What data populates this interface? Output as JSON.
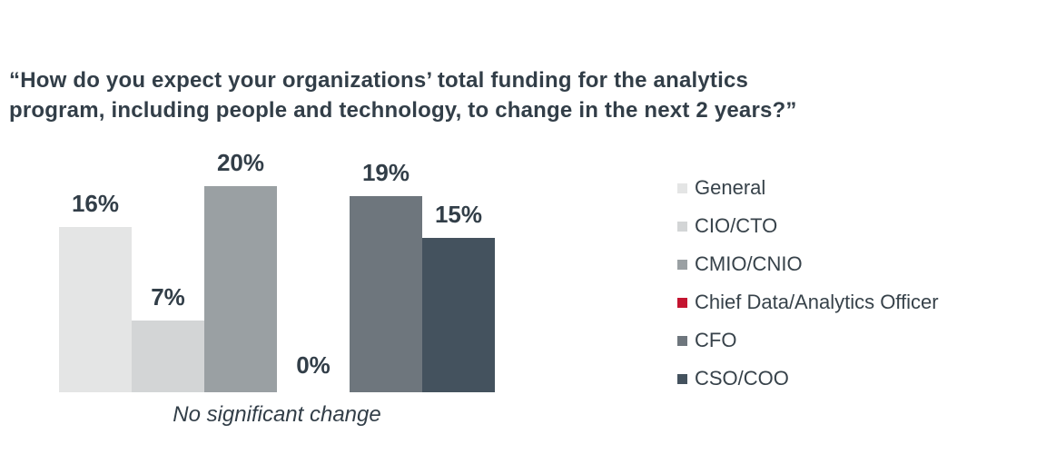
{
  "header": {
    "line1": "“How do you expect your organizations’ total funding for the analytics",
    "line2": "program, including people and technology, to change in the next 2 years?”"
  },
  "chart_data": {
    "type": "bar",
    "title": "“How do you expect your organizations’ total funding for the analytics program, including people and technology, to change in the next 2 years?”",
    "categories": [
      "No significant change"
    ],
    "series": [
      {
        "name": "General",
        "values": [
          16
        ],
        "labels": [
          "16%"
        ],
        "color": "#e4e5e5"
      },
      {
        "name": "CIO/CTO",
        "values": [
          7
        ],
        "labels": [
          "7%"
        ],
        "color": "#d3d5d6"
      },
      {
        "name": "CMIO/CNIO",
        "values": [
          20
        ],
        "labels": [
          "20%"
        ],
        "color": "#9aa0a3"
      },
      {
        "name": "Chief Data/Analytics Officer",
        "values": [
          0
        ],
        "labels": [
          "0%"
        ],
        "color": "#c41430"
      },
      {
        "name": "CFO",
        "values": [
          19
        ],
        "labels": [
          "19%"
        ],
        "color": "#6e767d"
      },
      {
        "name": "CSO/COO",
        "values": [
          15
        ],
        "labels": [
          "15%"
        ],
        "color": "#44525e"
      }
    ],
    "ylim": [
      0,
      20
    ],
    "value_unit": "%",
    "grid": false,
    "axis_visible": false,
    "legend_position": "right",
    "value_labels_shown": true,
    "colors": {
      "text": "#323e48",
      "background": "#ffffff"
    }
  }
}
